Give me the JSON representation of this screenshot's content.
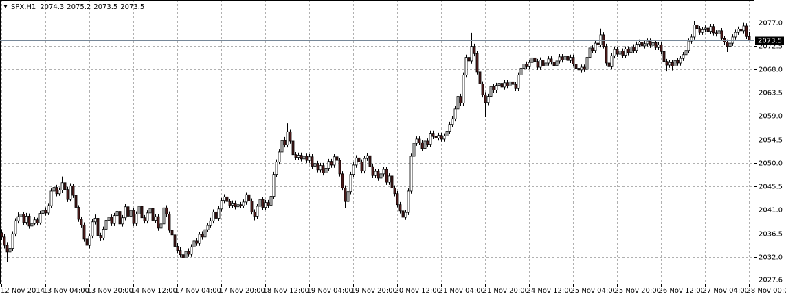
{
  "chart_data": {
    "type": "candlestick",
    "title": "SPX,H1",
    "up_color": "#ffffff",
    "down_color": "#4d1a1a",
    "wick_color": "#000000",
    "grid": true,
    "xlim": [
      -0.5,
      274
    ],
    "xticks": [
      {
        "value": 0,
        "label": "12 Nov 2014"
      },
      {
        "value": 16,
        "label": "13 Nov 04:00"
      },
      {
        "value": 32,
        "label": "13 Nov 20:00"
      },
      {
        "value": 48,
        "label": "14 Nov 12:00"
      },
      {
        "value": 64,
        "label": "17 Nov 04:00"
      },
      {
        "value": 80,
        "label": "17 Nov 20:00"
      },
      {
        "value": 96,
        "label": "18 Nov 12:00"
      },
      {
        "value": 112,
        "label": "19 Nov 04:00"
      },
      {
        "value": 128,
        "label": "19 Nov 20:00"
      },
      {
        "value": 144,
        "label": "20 Nov 12:00"
      },
      {
        "value": 160,
        "label": "21 Nov 04:00"
      },
      {
        "value": 176,
        "label": "21 Nov 20:00"
      },
      {
        "value": 192,
        "label": "24 Nov 12:00"
      },
      {
        "value": 208,
        "label": "25 Nov 04:00"
      },
      {
        "value": 224,
        "label": "25 Nov 20:00"
      },
      {
        "value": 240,
        "label": "26 Nov 12:00"
      },
      {
        "value": 256,
        "label": "27 Nov 04:00"
      },
      {
        "value": 272,
        "label": "28 Nov 00:00"
      }
    ],
    "ylim": [
      2026.7,
      2081.3
    ],
    "yticks": [
      {
        "value": 2077,
        "label": "2077.0"
      },
      2072.5,
      {
        "value": 2068,
        "label": "2068.0"
      },
      2063.5,
      {
        "value": 2059,
        "label": "2059.0"
      },
      2054.5,
      {
        "value": 2050,
        "label": "2050.0"
      },
      2045.5,
      {
        "value": 2041,
        "label": "2041.0"
      },
      2036.5,
      {
        "value": 2032,
        "label": "2032.0"
      },
      2027.6
    ],
    "open": [
      2036.6,
      2035.8,
      2034.2,
      2032.9,
      2033.6,
      2036.4,
      2038.9,
      2039.7,
      2040.2,
      2038.6,
      2039.8,
      2037.9,
      2038.4,
      2039.1,
      2038.5,
      2040.3,
      2040.9,
      2040.4,
      2041.8,
      2044.6,
      2045.3,
      2044.1,
      2044.8,
      2046.2,
      2044.9,
      2043.0,
      2045.6,
      2043.8,
      2041.5,
      2039.2,
      2038.1,
      2035.4,
      2034.2,
      2036.0,
      2038.7,
      2039.4,
      2036.1,
      2035.6,
      2037.3,
      2039.0,
      2039.6,
      2038.4,
      2039.9,
      2040.7,
      2038.3,
      2039.5,
      2041.6,
      2039.8,
      2040.9,
      2038.4,
      2040.2,
      2041.7,
      2039.5,
      2038.9,
      2040.4,
      2041.3,
      2039.0,
      2039.7,
      2037.5,
      2038.3,
      2041.4,
      2040.2,
      2037.1,
      2036.2,
      2034.0,
      2033.2,
      2032.4,
      2031.8,
      2033.0,
      2032.5,
      2033.9,
      2035.0,
      2034.6,
      2036.3,
      2035.8,
      2037.2,
      2038.0,
      2038.9,
      2040.6,
      2039.4,
      2041.2,
      2042.8,
      2043.5,
      2042.6,
      2041.9,
      2042.3,
      2041.6,
      2042.0,
      2041.8,
      2042.5,
      2043.9,
      2042.7,
      2040.6,
      2039.8,
      2041.7,
      2043.0,
      2041.5,
      2042.4,
      2041.9,
      2043.6,
      2047.8,
      2050.2,
      2052.1,
      2054.3,
      2053.5,
      2056.0,
      2054.2,
      2051.6,
      2051.1,
      2051.5,
      2050.8,
      2051.3,
      2050.5,
      2051.2,
      2049.4,
      2049.9,
      2048.7,
      2049.5,
      2048.1,
      2049.0,
      2050.3,
      2049.6,
      2051.2,
      2050.5,
      2047.9,
      2045.2,
      2042.6,
      2044.5,
      2047.8,
      2049.6,
      2051.0,
      2050.2,
      2048.5,
      2050.9,
      2051.4,
      2049.3,
      2047.6,
      2048.4,
      2047.1,
      2047.9,
      2048.8,
      2046.3,
      2047.5,
      2045.2,
      2044.1,
      2042.0,
      2040.8,
      2039.6,
      2040.5,
      2044.6,
      2051.3,
      2053.8,
      2054.6,
      2053.9,
      2052.8,
      2054.2,
      2053.6,
      2055.7,
      2055.1,
      2054.8,
      2055.3,
      2054.6,
      2055.2,
      2056.1,
      2057.4,
      2058.5,
      2060.4,
      2062.8,
      2061.5,
      2066.9,
      2070.3,
      2069.6,
      2072.4,
      2071.0,
      2067.5,
      2065.2,
      2063.1,
      2061.6,
      2062.8,
      2064.7,
      2064.0,
      2064.9,
      2065.3,
      2064.6,
      2065.4,
      2064.8,
      2065.6,
      2065.1,
      2064.3,
      2066.9,
      2068.2,
      2069.0,
      2068.5,
      2069.3,
      2070.2,
      2069.5,
      2068.4,
      2069.8,
      2068.6,
      2069.2,
      2070.0,
      2069.4,
      2068.7,
      2069.6,
      2070.4,
      2069.8,
      2070.5,
      2069.7,
      2070.3,
      2069.0,
      2068.2,
      2067.9,
      2068.4,
      2068.0,
      2070.3,
      2072.1,
      2071.6,
      2073.0,
      2072.7,
      2074.6,
      2072.4,
      2069.2,
      2068.5,
      2070.6,
      2071.8,
      2070.9,
      2071.5,
      2070.7,
      2071.9,
      2071.2,
      2072.3,
      2071.6,
      2072.8,
      2073.2,
      2072.5,
      2072.9,
      2073.4,
      2072.6,
      2073.1,
      2072.2,
      2072.7,
      2071.4,
      2069.5,
      2068.8,
      2069.3,
      2068.6,
      2069.7,
      2069.2,
      2070.1,
      2070.8,
      2071.6,
      2073.4,
      2074.2,
      2076.5,
      2075.8,
      2075.1,
      2075.6,
      2075.9,
      2075.3,
      2076.2,
      2075.0,
      2074.8,
      2075.4,
      2073.9,
      2073.2,
      2072.4,
      2073.0,
      2074.2,
      2075.1,
      2075.7,
      2075.4,
      2076.3,
      2074.3
    ],
    "high": [
      2037.3,
      2036.4,
      2034.8,
      2034.1,
      2036.9,
      2039.4,
      2040.5,
      2040.8,
      2040.6,
      2040.4,
      2040.3,
      2038.9,
      2039.6,
      2039.5,
      2040.8,
      2041.4,
      2041.5,
      2042.3,
      2045.1,
      2045.9,
      2045.8,
      2045.3,
      2047.4,
      2046.7,
      2045.4,
      2046.1,
      2046.0,
      2044.3,
      2041.9,
      2039.7,
      2038.6,
      2035.9,
      2036.5,
      2039.2,
      2040.1,
      2039.9,
      2036.6,
      2037.8,
      2039.5,
      2040.2,
      2040.1,
      2040.4,
      2041.3,
      2041.2,
      2040.0,
      2042.1,
      2042.2,
      2041.4,
      2041.4,
      2040.7,
      2042.3,
      2042.2,
      2040.0,
      2040.9,
      2041.9,
      2041.8,
      2040.2,
      2040.2,
      2038.8,
      2041.9,
      2041.9,
      2040.7,
      2037.6,
      2036.7,
      2034.6,
      2033.8,
      2033.0,
      2033.5,
      2033.6,
      2034.4,
      2035.5,
      2035.6,
      2036.8,
      2036.9,
      2037.7,
      2038.5,
      2039.5,
      2041.1,
      2041.2,
      2041.7,
      2043.3,
      2044.0,
      2044.0,
      2043.1,
      2042.8,
      2042.8,
      2042.5,
      2042.5,
      2043.0,
      2044.4,
      2044.4,
      2043.2,
      2041.1,
      2042.2,
      2043.5,
      2043.5,
      2042.9,
      2042.9,
      2044.1,
      2048.3,
      2050.7,
      2052.6,
      2054.8,
      2055.0,
      2057.6,
      2056.5,
      2054.7,
      2052.1,
      2052.0,
      2052.0,
      2051.8,
      2051.8,
      2051.7,
      2051.7,
      2050.4,
      2050.4,
      2050.0,
      2050.0,
      2049.5,
      2050.8,
      2050.8,
      2051.7,
      2051.9,
      2051.0,
      2048.4,
      2045.7,
      2045.0,
      2048.3,
      2050.1,
      2051.5,
      2051.5,
      2050.7,
      2051.4,
      2051.9,
      2051.9,
      2049.8,
      2048.9,
      2048.9,
      2048.4,
      2049.3,
      2049.3,
      2048.0,
      2048.0,
      2045.7,
      2044.6,
      2042.5,
      2041.3,
      2041.0,
      2045.1,
      2051.8,
      2054.3,
      2055.1,
      2055.1,
      2054.4,
      2054.7,
      2054.7,
      2056.2,
      2056.2,
      2055.6,
      2055.8,
      2055.8,
      2055.7,
      2056.6,
      2057.9,
      2059.0,
      2060.9,
      2063.3,
      2063.3,
      2067.4,
      2070.8,
      2070.8,
      2075.0,
      2072.9,
      2071.5,
      2068.0,
      2065.7,
      2063.6,
      2063.3,
      2065.2,
      2065.2,
      2065.4,
      2065.8,
      2065.8,
      2065.9,
      2065.9,
      2066.1,
      2066.1,
      2065.6,
      2067.4,
      2068.7,
      2069.5,
      2069.5,
      2069.8,
      2070.7,
      2070.7,
      2070.0,
      2070.3,
      2070.3,
      2069.7,
      2070.5,
      2070.5,
      2069.9,
      2070.1,
      2070.9,
      2070.9,
      2071.0,
      2071.0,
      2070.8,
      2070.8,
      2069.5,
      2068.7,
      2068.9,
      2068.9,
      2070.8,
      2072.6,
      2072.6,
      2073.5,
      2073.5,
      2075.8,
      2075.1,
      2072.9,
      2069.7,
      2071.1,
      2072.3,
      2072.3,
      2072.0,
      2072.0,
      2072.4,
      2072.4,
      2072.8,
      2072.8,
      2073.3,
      2073.7,
      2073.7,
      2073.4,
      2073.9,
      2073.9,
      2073.6,
      2073.6,
      2073.2,
      2073.2,
      2071.9,
      2070.0,
      2069.8,
      2069.8,
      2070.2,
      2070.2,
      2070.6,
      2071.3,
      2072.1,
      2073.9,
      2074.7,
      2077.3,
      2077.0,
      2076.3,
      2076.1,
      2076.4,
      2076.4,
      2076.7,
      2076.7,
      2075.5,
      2075.9,
      2075.9,
      2074.4,
      2073.7,
      2073.5,
      2074.7,
      2075.6,
      2076.2,
      2076.2,
      2077.0,
      2076.8,
      2075.2
    ],
    "low": [
      2035.2,
      2033.6,
      2031.0,
      2032.3,
      2033.1,
      2035.9,
      2038.4,
      2039.2,
      2038.1,
      2038.2,
      2037.4,
      2037.5,
      2038.0,
      2038.0,
      2038.2,
      2039.9,
      2039.9,
      2040.0,
      2041.3,
      2044.1,
      2043.6,
      2043.7,
      2044.3,
      2044.4,
      2042.5,
      2042.6,
      2043.3,
      2041.0,
      2038.7,
      2037.5,
      2034.9,
      2030.5,
      2033.6,
      2035.5,
      2038.2,
      2035.6,
      2035.0,
      2035.1,
      2036.8,
      2038.5,
      2037.9,
      2037.9,
      2039.4,
      2037.8,
      2037.8,
      2039.0,
      2039.3,
      2039.3,
      2037.9,
      2037.9,
      2039.7,
      2039.0,
      2038.4,
      2038.4,
      2039.9,
      2038.5,
      2038.5,
      2037.0,
      2037.0,
      2037.8,
      2039.7,
      2036.6,
      2035.7,
      2033.5,
      2032.7,
      2031.9,
      2029.5,
      2031.3,
      2032.0,
      2032.0,
      2033.4,
      2034.1,
      2034.1,
      2035.3,
      2035.3,
      2036.7,
      2037.5,
      2038.4,
      2038.9,
      2038.9,
      2040.7,
      2042.3,
      2042.1,
      2041.4,
      2041.4,
      2041.1,
      2041.1,
      2041.3,
      2041.3,
      2042.0,
      2042.2,
      2040.1,
      2039.0,
      2039.3,
      2041.2,
      2041.0,
      2041.0,
      2041.4,
      2041.4,
      2043.1,
      2047.3,
      2049.7,
      2051.6,
      2053.0,
      2053.0,
      2053.7,
      2051.1,
      2050.6,
      2050.6,
      2050.3,
      2050.3,
      2050.0,
      2050.0,
      2048.9,
      2048.9,
      2048.2,
      2048.2,
      2047.6,
      2047.6,
      2048.5,
      2049.1,
      2049.1,
      2050.0,
      2047.4,
      2044.7,
      2041.3,
      2042.1,
      2044.0,
      2047.3,
      2049.1,
      2049.7,
      2048.0,
      2048.0,
      2050.4,
      2048.8,
      2047.1,
      2047.1,
      2046.6,
      2046.6,
      2047.4,
      2045.8,
      2045.8,
      2044.7,
      2043.6,
      2041.5,
      2040.3,
      2038.0,
      2039.1,
      2040.0,
      2044.1,
      2050.8,
      2053.3,
      2053.4,
      2052.3,
      2052.3,
      2053.1,
      2053.1,
      2054.6,
      2054.3,
      2054.3,
      2054.1,
      2054.1,
      2054.7,
      2055.6,
      2056.9,
      2058.0,
      2059.9,
      2061.0,
      2061.0,
      2066.4,
      2069.1,
      2069.1,
      2070.5,
      2067.0,
      2064.7,
      2062.6,
      2058.8,
      2061.1,
      2062.3,
      2063.5,
      2063.5,
      2064.4,
      2064.1,
      2064.1,
      2064.3,
      2064.3,
      2064.6,
      2063.8,
      2063.8,
      2066.4,
      2067.7,
      2068.0,
      2068.0,
      2068.8,
      2069.0,
      2067.9,
      2067.9,
      2068.1,
      2068.1,
      2068.7,
      2068.9,
      2068.2,
      2068.2,
      2069.1,
      2069.3,
      2069.3,
      2069.2,
      2069.2,
      2068.5,
      2067.7,
      2067.4,
      2067.4,
      2067.5,
      2067.5,
      2069.8,
      2071.1,
      2071.1,
      2072.2,
      2072.2,
      2072.0,
      2068.7,
      2066.0,
      2068.0,
      2070.1,
      2070.4,
      2070.4,
      2070.2,
      2070.2,
      2070.7,
      2070.7,
      2071.1,
      2071.1,
      2072.3,
      2072.0,
      2072.0,
      2072.4,
      2072.1,
      2072.1,
      2071.7,
      2071.7,
      2070.9,
      2069.0,
      2067.6,
      2068.3,
      2067.8,
      2068.1,
      2068.7,
      2068.7,
      2069.6,
      2070.3,
      2071.1,
      2072.9,
      2073.7,
      2075.3,
      2074.6,
      2074.6,
      2075.1,
      2074.8,
      2074.8,
      2074.5,
      2074.3,
      2074.3,
      2073.4,
      2072.7,
      2071.3,
      2071.9,
      2072.5,
      2073.7,
      2074.6,
      2074.9,
      2074.9,
      2073.8,
      2073.5
    ],
    "close": [
      2035.8,
      2034.2,
      2032.9,
      2033.6,
      2036.4,
      2038.9,
      2039.7,
      2040.2,
      2038.6,
      2039.8,
      2037.9,
      2038.4,
      2039.1,
      2038.5,
      2040.3,
      2040.9,
      2040.4,
      2041.8,
      2044.6,
      2045.3,
      2044.1,
      2044.8,
      2046.2,
      2044.9,
      2043.0,
      2045.6,
      2043.8,
      2041.5,
      2039.2,
      2038.1,
      2035.4,
      2034.2,
      2036.0,
      2038.7,
      2039.4,
      2036.1,
      2035.6,
      2037.3,
      2039.0,
      2039.6,
      2038.4,
      2039.9,
      2040.7,
      2038.3,
      2039.5,
      2041.6,
      2039.8,
      2040.9,
      2038.4,
      2040.2,
      2041.7,
      2039.5,
      2038.9,
      2040.4,
      2041.3,
      2039.0,
      2039.7,
      2037.5,
      2038.3,
      2041.4,
      2040.2,
      2037.1,
      2036.2,
      2034.0,
      2033.2,
      2032.4,
      2031.8,
      2033.0,
      2032.5,
      2033.9,
      2035.0,
      2034.6,
      2036.3,
      2035.8,
      2037.2,
      2038.0,
      2038.9,
      2040.6,
      2039.4,
      2041.2,
      2042.8,
      2043.5,
      2042.6,
      2041.9,
      2042.3,
      2041.6,
      2042.0,
      2041.8,
      2042.5,
      2043.9,
      2042.7,
      2040.6,
      2039.8,
      2041.7,
      2043.0,
      2041.5,
      2042.4,
      2041.9,
      2043.6,
      2047.8,
      2050.2,
      2052.1,
      2054.3,
      2053.5,
      2056.0,
      2054.2,
      2051.6,
      2051.1,
      2051.5,
      2050.8,
      2051.3,
      2050.5,
      2051.2,
      2049.4,
      2049.9,
      2048.7,
      2049.5,
      2048.1,
      2049.0,
      2050.3,
      2049.6,
      2051.2,
      2050.5,
      2047.9,
      2045.2,
      2042.6,
      2044.5,
      2047.8,
      2049.6,
      2051.0,
      2050.2,
      2048.5,
      2050.9,
      2051.4,
      2049.3,
      2047.6,
      2048.4,
      2047.1,
      2047.9,
      2048.8,
      2046.3,
      2047.5,
      2045.2,
      2044.1,
      2042.0,
      2040.8,
      2039.6,
      2040.5,
      2044.6,
      2051.3,
      2053.8,
      2054.6,
      2053.9,
      2052.8,
      2054.2,
      2053.6,
      2055.7,
      2055.1,
      2054.8,
      2055.3,
      2054.6,
      2055.2,
      2056.1,
      2057.4,
      2058.5,
      2060.4,
      2062.8,
      2061.5,
      2066.9,
      2070.3,
      2069.6,
      2072.4,
      2071.0,
      2067.5,
      2065.2,
      2063.1,
      2061.6,
      2062.8,
      2064.7,
      2064.0,
      2064.9,
      2065.3,
      2064.6,
      2065.4,
      2064.8,
      2065.6,
      2065.1,
      2064.3,
      2066.9,
      2068.2,
      2069.0,
      2068.5,
      2069.3,
      2070.2,
      2069.5,
      2068.4,
      2069.8,
      2068.6,
      2069.2,
      2070.0,
      2069.4,
      2068.7,
      2069.6,
      2070.4,
      2069.8,
      2070.5,
      2069.7,
      2070.3,
      2069.0,
      2068.2,
      2067.9,
      2068.4,
      2068.0,
      2070.3,
      2072.1,
      2071.6,
      2073.0,
      2072.7,
      2074.6,
      2072.4,
      2069.2,
      2068.5,
      2070.6,
      2071.8,
      2070.9,
      2071.5,
      2070.7,
      2071.9,
      2071.2,
      2072.3,
      2071.6,
      2072.8,
      2073.2,
      2072.5,
      2072.9,
      2073.4,
      2072.6,
      2073.1,
      2072.2,
      2072.7,
      2071.4,
      2069.5,
      2068.8,
      2069.3,
      2068.6,
      2069.7,
      2069.2,
      2070.1,
      2070.8,
      2071.6,
      2073.4,
      2074.2,
      2076.5,
      2075.8,
      2075.1,
      2075.6,
      2075.9,
      2075.3,
      2076.2,
      2075.0,
      2074.8,
      2075.4,
      2073.9,
      2073.2,
      2072.4,
      2073.0,
      2074.2,
      2075.1,
      2075.7,
      2075.4,
      2076.3,
      2074.3,
      2073.5
    ]
  }
}
